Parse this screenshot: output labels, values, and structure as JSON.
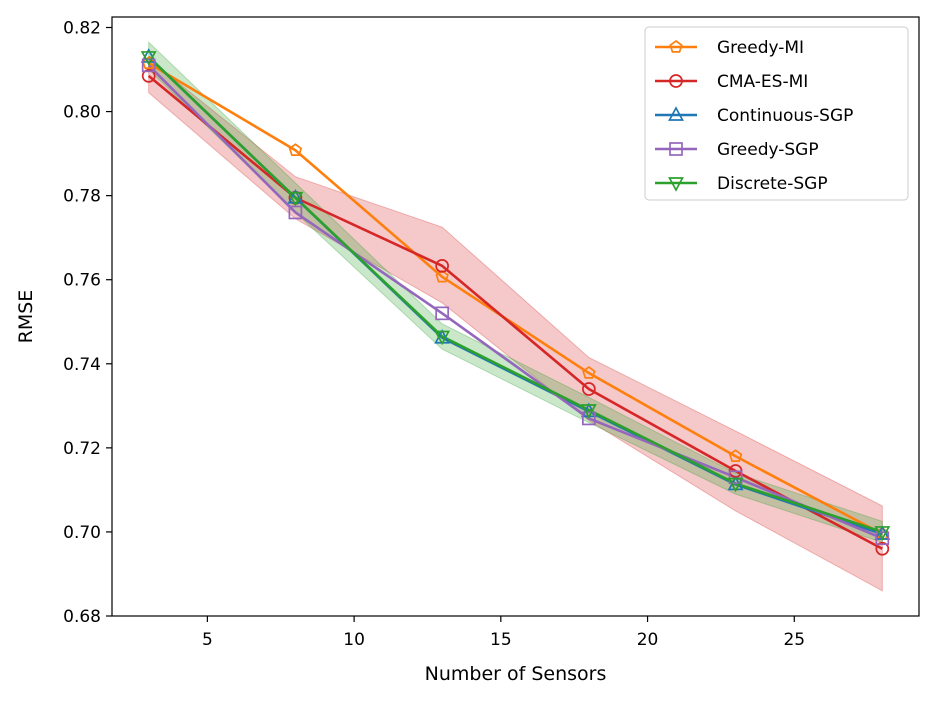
{
  "chart_data": {
    "type": "line",
    "title": "",
    "xlabel": "Number of Sensors",
    "ylabel": "RMSE",
    "xlim": [
      1.75,
      29.25
    ],
    "ylim": [
      0.68,
      0.8225
    ],
    "xticks": [
      5,
      10,
      15,
      20,
      25
    ],
    "yticks": [
      0.68,
      0.7,
      0.72,
      0.74,
      0.76,
      0.78,
      0.8,
      0.82
    ],
    "grid": false,
    "legend_position": "top-right",
    "x": [
      3,
      8,
      13,
      18,
      23,
      28
    ],
    "series": [
      {
        "name": "Greedy-MI",
        "color": "#ff7f0e",
        "marker": "pentagon",
        "values": [
          0.8115,
          0.7908,
          0.7607,
          0.7378,
          0.718,
          0.6995
        ]
      },
      {
        "name": "CMA-ES-MI",
        "color": "#d62728",
        "marker": "circle",
        "values": [
          0.8085,
          0.7795,
          0.7633,
          0.734,
          0.7145,
          0.696
        ],
        "band_lower": [
          0.8045,
          0.7745,
          0.7545,
          0.7265,
          0.705,
          0.686
        ],
        "band_upper": [
          0.8125,
          0.7845,
          0.7725,
          0.7415,
          0.724,
          0.7062
        ]
      },
      {
        "name": "Continuous-SGP",
        "color": "#1f77b4",
        "marker": "triangle-up",
        "values": [
          0.813,
          0.7795,
          0.7462,
          0.7287,
          0.7113,
          0.6995
        ]
      },
      {
        "name": "Greedy-SGP",
        "color": "#9467bd",
        "marker": "square",
        "values": [
          0.811,
          0.776,
          0.752,
          0.727,
          0.713,
          0.6985
        ]
      },
      {
        "name": "Discrete-SGP",
        "color": "#2ca02c",
        "marker": "triangle-down",
        "values": [
          0.813,
          0.7795,
          0.7465,
          0.729,
          0.7115,
          0.7
        ],
        "band_lower": [
          0.81,
          0.776,
          0.7435,
          0.726,
          0.709,
          0.6975
        ],
        "band_upper": [
          0.8165,
          0.783,
          0.7495,
          0.732,
          0.714,
          0.7025
        ]
      }
    ]
  }
}
